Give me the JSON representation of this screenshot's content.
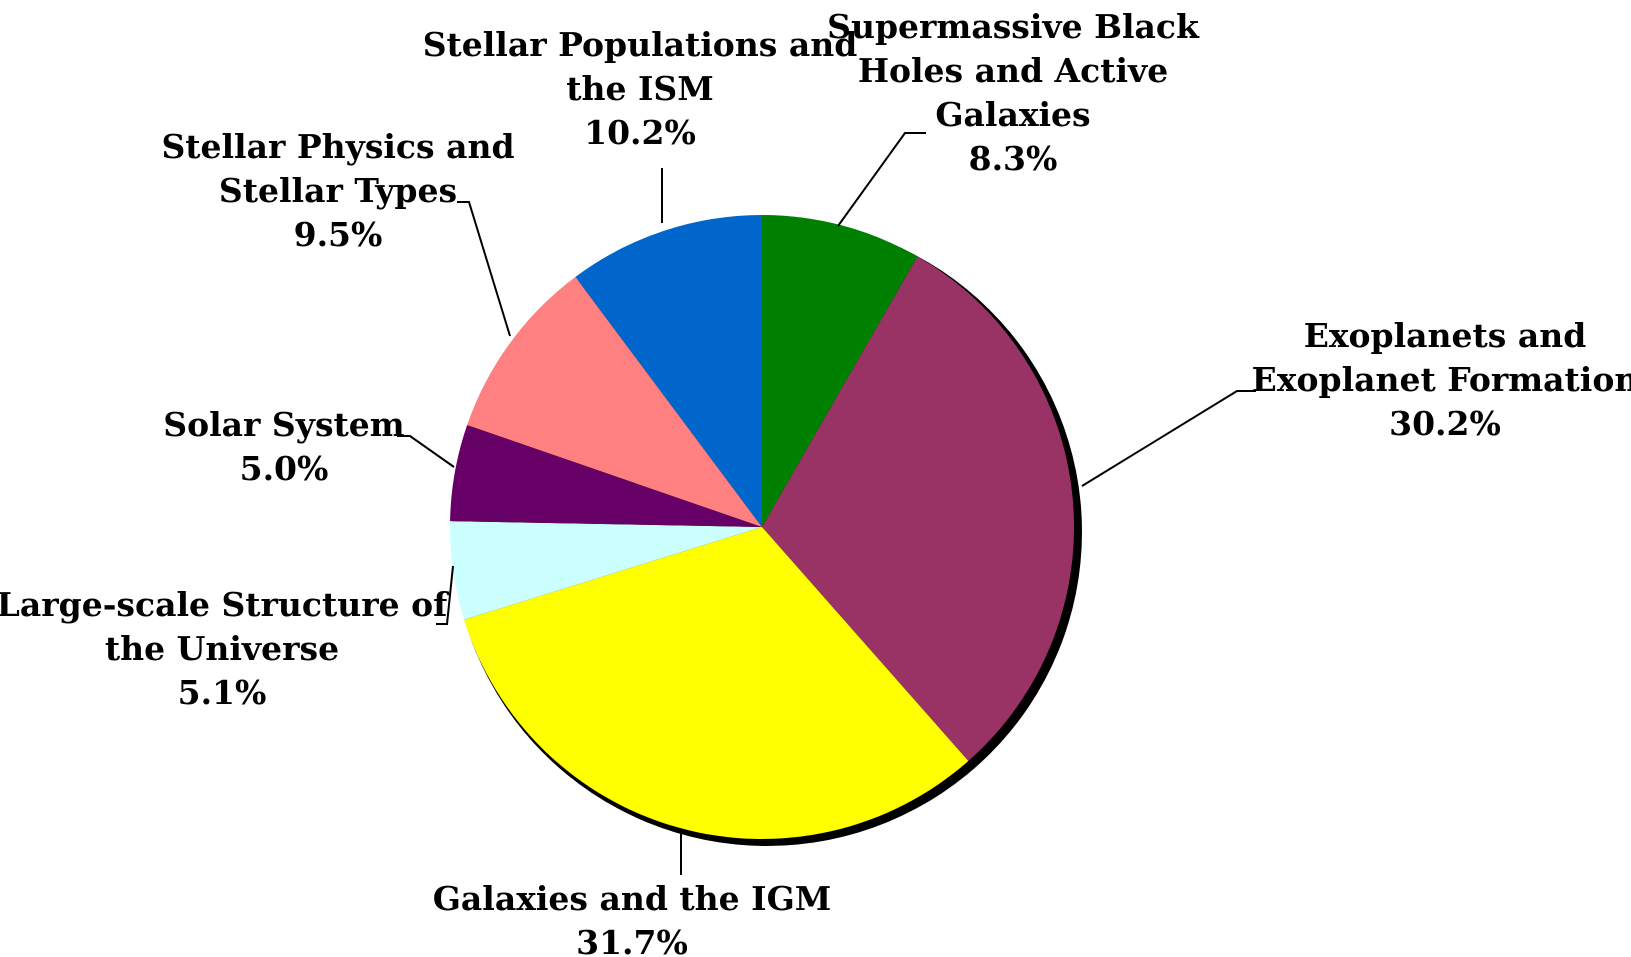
{
  "chart_data": {
    "type": "pie",
    "title": "",
    "slices": [
      {
        "name": "Supermassive Black Holes and Active Galaxies",
        "lines": [
          "Supermassive Black",
          "Holes and Active",
          "Galaxies"
        ],
        "value": 8.3,
        "label": "8.3%",
        "color": "#008000"
      },
      {
        "name": "Exoplanets and Exoplanet Formation",
        "lines": [
          "Exoplanets and",
          "Exoplanet Formation"
        ],
        "value": 30.2,
        "label": "30.2%",
        "color": "#993366"
      },
      {
        "name": "Galaxies and the IGM",
        "lines": [
          "Galaxies and the IGM"
        ],
        "value": 31.7,
        "label": "31.7%",
        "color": "#ffff00"
      },
      {
        "name": "Large-scale Structure of the Universe",
        "lines": [
          "Large-scale Structure of",
          "the Universe"
        ],
        "value": 5.1,
        "label": "5.1%",
        "color": "#ccffff"
      },
      {
        "name": "Solar System",
        "lines": [
          "Solar System"
        ],
        "value": 5.0,
        "label": "5.0%",
        "color": "#660066"
      },
      {
        "name": "Stellar Physics and Stellar Types",
        "lines": [
          "Stellar Physics and",
          "Stellar Types"
        ],
        "value": 9.5,
        "label": "9.5%",
        "color": "#ff8080"
      },
      {
        "name": "Stellar Populations and the ISM",
        "lines": [
          "Stellar Populations and",
          "the ISM"
        ],
        "value": 10.2,
        "label": "10.2%",
        "color": "#0066cc"
      }
    ]
  }
}
